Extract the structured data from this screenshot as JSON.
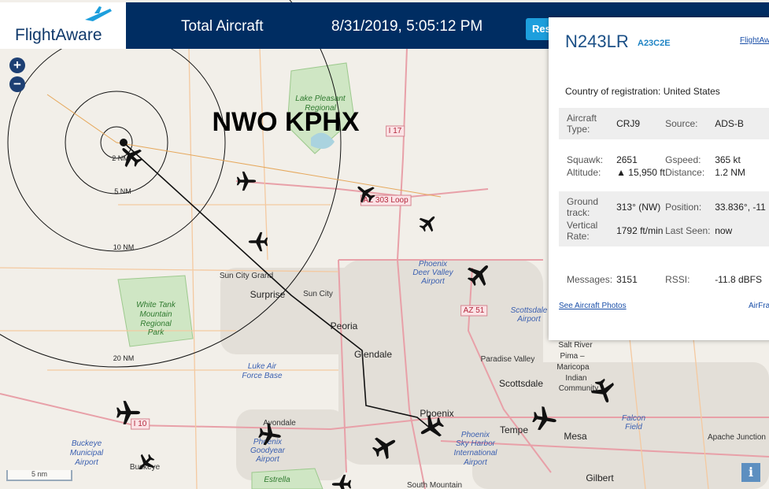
{
  "header": {
    "logo": "FlightAware",
    "total_aircraft": "Total Aircraft",
    "datetime": "8/31/2019, 5:05:12 PM",
    "button": "Res"
  },
  "map": {
    "title": "NWO KPHX",
    "rings": [
      "2 NM",
      "5 NM",
      "10 NM",
      "20 NM"
    ],
    "labels": [
      "Lake Pleasant",
      "Regional",
      "I 17",
      "AZ 303 Loop",
      "Phoenix",
      "Deer Valley",
      "Airport",
      "Sun City Grand",
      "Surprise",
      "Sun City",
      "Peoria",
      "Glendale",
      "White Tank",
      "Mountain",
      "Regional",
      "Park",
      "Luke Air",
      "Force Base",
      "AZ 51",
      "Scottsdale",
      "Airport",
      "Paradise Valley",
      "Scottsdale",
      "Salt River",
      "Pima –",
      "Maricopa",
      "Indian",
      "Community",
      "Phoenix",
      "Tempe",
      "Mesa",
      "Falcon",
      "Field",
      "Apache Junction",
      "Gilbert",
      "Avondale",
      "Phoenix",
      "Goodyear",
      "Airport",
      "Buckeye",
      "Municipal",
      "Airport",
      "Buckeye",
      "I 10",
      "Phoenix",
      "Sky Harbor",
      "International",
      "Airport",
      "Estrella",
      "South Mountain"
    ],
    "scale": "5 nm",
    "info": "i",
    "zoom_in": "+",
    "zoom_out": "−"
  },
  "panel": {
    "registration": "N243LR",
    "hex": "A23C2E",
    "link": "FlightAwa",
    "country_label": "Country of registration:",
    "country": "United States",
    "blocks": [
      [
        [
          "Aircraft Type:",
          "CRJ9",
          "Source:",
          "ADS-B"
        ]
      ],
      [
        [
          "Squawk:",
          "2651",
          "Gspeed:",
          "365 kt"
        ],
        [
          "Altitude:",
          "▲ 15,950 ft",
          "Distance:",
          "1.2 NM"
        ]
      ],
      [
        [
          "Ground track:",
          "313° (NW)",
          "Position:",
          "33.836°, -11"
        ],
        [
          "Vertical Rate:",
          "1792 ft/min",
          "Last Seen:",
          "now"
        ]
      ],
      [
        [
          "Messages:",
          "3151",
          "RSSI:",
          "-11.8 dBFS"
        ]
      ]
    ],
    "photos": "See Aircraft Photos",
    "airframes": "AirFra"
  }
}
